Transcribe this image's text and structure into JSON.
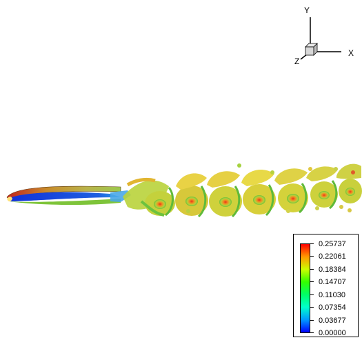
{
  "axes_triad": {
    "x_label": "X",
    "y_label": "Y",
    "z_label": "Z"
  },
  "legend": {
    "labels": [
      "0.25737",
      "0.22061",
      "0.18384",
      "0.14707",
      "0.11030",
      "0.07354",
      "0.03677",
      "0.00000"
    ],
    "colors": [
      "#ff0000",
      "#ff9900",
      "#ccff00",
      "#33ff00",
      "#00ff66",
      "#00ffcc",
      "#0099ff",
      "#0000ff"
    ]
  }
}
